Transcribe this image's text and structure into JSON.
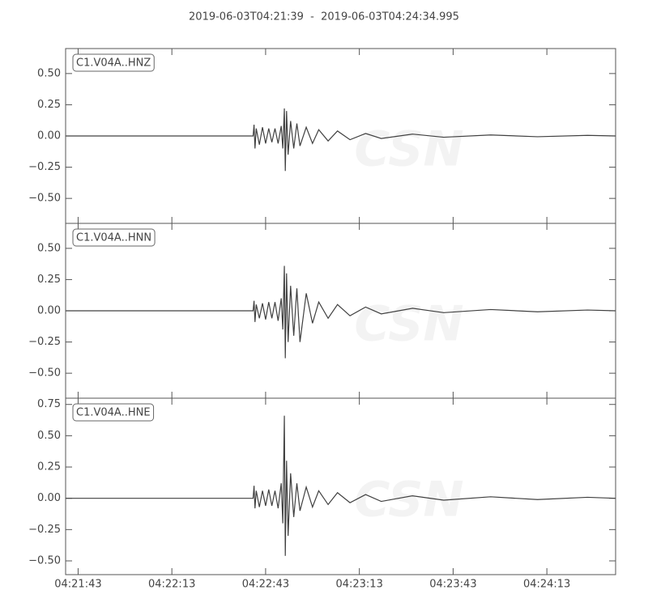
{
  "title": "2019-06-03T04:21:39  -  2019-06-03T04:24:34.995",
  "watermark": "CSN",
  "chart_data": [
    {
      "type": "line",
      "x": [
        15699,
        15759,
        15759.3,
        15759.6,
        15760,
        15761,
        15762,
        15763,
        15764,
        15765,
        15766,
        15767,
        15768,
        15768.5,
        15769,
        15769.3,
        15769.7,
        15770.2,
        15771,
        15772,
        15773,
        15774,
        15776,
        15778,
        15780,
        15783,
        15786,
        15790,
        15795,
        15800,
        15810,
        15820,
        15835,
        15850,
        15866,
        15875
      ],
      "series": [
        {
          "name": "C1.V04A..HNZ",
          "color": "#404040",
          "values": [
            0,
            0,
            0.09,
            -0.1,
            0.06,
            -0.07,
            0.07,
            -0.06,
            0.06,
            -0.05,
            0.06,
            -0.06,
            0.08,
            -0.1,
            0.22,
            -0.28,
            0.2,
            -0.15,
            0.12,
            -0.1,
            0.1,
            -0.08,
            0.07,
            -0.06,
            0.05,
            -0.04,
            0.04,
            -0.03,
            0.02,
            -0.02,
            0.015,
            -0.01,
            0.008,
            -0.006,
            0.005,
            0
          ]
        }
      ],
      "xlim": [
        15699,
        15874.995
      ],
      "ylim": [
        -0.7,
        0.7
      ],
      "yticks": [
        {
          "value": -0.5,
          "label": "−0.50"
        },
        {
          "value": -0.25,
          "label": "−0.25"
        },
        {
          "value": 0,
          "label": "0.00"
        },
        {
          "value": 0.25,
          "label": "0.25"
        },
        {
          "value": 0.5,
          "label": "0.50"
        }
      ]
    },
    {
      "type": "line",
      "x": [
        15699,
        15759,
        15759.3,
        15759.6,
        15760,
        15761,
        15762,
        15763,
        15764,
        15765,
        15766,
        15767,
        15768,
        15768.5,
        15769,
        15769.3,
        15769.7,
        15770.2,
        15771,
        15772,
        15773,
        15774,
        15776,
        15778,
        15780,
        15783,
        15786,
        15790,
        15795,
        15800,
        15810,
        15820,
        15835,
        15850,
        15866,
        15875
      ],
      "series": [
        {
          "name": "C1.V04A..HNN",
          "color": "#404040",
          "values": [
            0,
            0,
            0.08,
            -0.09,
            0.05,
            -0.06,
            0.06,
            -0.07,
            0.07,
            -0.06,
            0.07,
            -0.08,
            0.1,
            -0.15,
            0.36,
            -0.38,
            0.3,
            -0.25,
            0.2,
            -0.2,
            0.18,
            -0.25,
            0.14,
            -0.1,
            0.07,
            -0.06,
            0.05,
            -0.04,
            0.03,
            -0.025,
            0.02,
            -0.015,
            0.01,
            -0.008,
            0.006,
            0
          ]
        }
      ],
      "xlim": [
        15699,
        15874.995
      ],
      "ylim": [
        -0.7,
        0.7
      ],
      "yticks": [
        {
          "value": -0.5,
          "label": "−0.50"
        },
        {
          "value": -0.25,
          "label": "−0.25"
        },
        {
          "value": 0,
          "label": "0.00"
        },
        {
          "value": 0.25,
          "label": "0.25"
        },
        {
          "value": 0.5,
          "label": "0.50"
        }
      ]
    },
    {
      "type": "line",
      "x": [
        15699,
        15759,
        15759.3,
        15759.6,
        15760,
        15761,
        15762,
        15763,
        15764,
        15765,
        15766,
        15767,
        15768,
        15768.5,
        15769,
        15769.3,
        15769.7,
        15770.2,
        15771,
        15772,
        15773,
        15774,
        15776,
        15778,
        15780,
        15783,
        15786,
        15790,
        15795,
        15800,
        15810,
        15820,
        15835,
        15850,
        15866,
        15875
      ],
      "series": [
        {
          "name": "C1.V04A..HNE",
          "color": "#404040",
          "values": [
            0,
            0,
            0.1,
            -0.08,
            0.06,
            -0.07,
            0.06,
            -0.06,
            0.07,
            -0.06,
            0.06,
            -0.08,
            0.12,
            -0.2,
            0.66,
            -0.46,
            0.3,
            -0.3,
            0.2,
            -0.15,
            0.12,
            -0.1,
            0.09,
            -0.07,
            0.06,
            -0.05,
            0.045,
            -0.035,
            0.03,
            -0.025,
            0.02,
            -0.015,
            0.012,
            -0.01,
            0.008,
            0
          ]
        }
      ],
      "xlim": [
        15699,
        15874.995
      ],
      "ylim": [
        -0.61,
        0.8
      ],
      "yticks": [
        {
          "value": -0.5,
          "label": "−0.50"
        },
        {
          "value": -0.25,
          "label": "−0.25"
        },
        {
          "value": 0,
          "label": "0.00"
        },
        {
          "value": 0.25,
          "label": "0.25"
        },
        {
          "value": 0.5,
          "label": "0.50"
        },
        {
          "value": 0.75,
          "label": "0.75"
        }
      ],
      "xticks": [
        {
          "value": 15703,
          "label": "04:21:43"
        },
        {
          "value": 15733,
          "label": "04:22:13"
        },
        {
          "value": 15763,
          "label": "04:22:43"
        },
        {
          "value": 15793,
          "label": "04:23:13"
        },
        {
          "value": 15823,
          "label": "04:23:43"
        },
        {
          "value": 15853,
          "label": "04:24:13"
        }
      ]
    }
  ]
}
